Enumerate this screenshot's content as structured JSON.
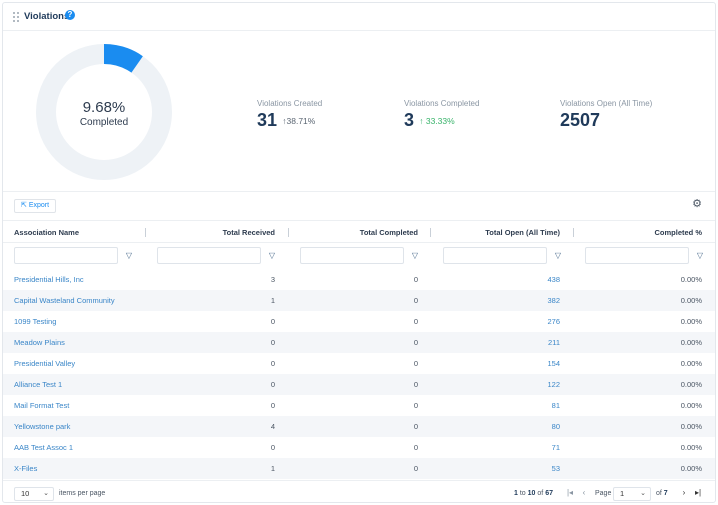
{
  "widget": {
    "title": "Violations",
    "help_icon": "question-circle-icon",
    "help_text": "?"
  },
  "donut": {
    "percent_label": "9.68%",
    "caption": "Completed",
    "value_fraction": 0.0968,
    "fill_color": "#1a8cf0",
    "track_color": "#eef2f6"
  },
  "stats": [
    {
      "label": "Violations Created",
      "value": "31",
      "change": "↑38.71%",
      "change_color": "#5b6673"
    },
    {
      "label": "Violations Completed",
      "value": "3",
      "change": "↑ 33.33%",
      "change_color": "#38b36a"
    },
    {
      "label": "Violations Open (All Time)",
      "value": "2507",
      "change": ""
    }
  ],
  "toolbar": {
    "export_label": "Export",
    "export_icon": "external-link-icon",
    "settings_icon": "gear-icon"
  },
  "table": {
    "columns": [
      "Association Name",
      "Total Received",
      "Total Completed",
      "Total Open (All Time)",
      "Completed %"
    ],
    "rows": [
      {
        "name": "Presidential Hills, Inc",
        "received": "3",
        "completed": "0",
        "open": "438",
        "pct": "0.00%"
      },
      {
        "name": "Capital Wasteland Community",
        "received": "1",
        "completed": "0",
        "open": "382",
        "pct": "0.00%"
      },
      {
        "name": "1099 Testing",
        "received": "0",
        "completed": "0",
        "open": "276",
        "pct": "0.00%"
      },
      {
        "name": "Meadow Plains",
        "received": "0",
        "completed": "0",
        "open": "211",
        "pct": "0.00%"
      },
      {
        "name": "Presidential Valley",
        "received": "0",
        "completed": "0",
        "open": "154",
        "pct": "0.00%"
      },
      {
        "name": "Alliance Test 1",
        "received": "0",
        "completed": "0",
        "open": "122",
        "pct": "0.00%"
      },
      {
        "name": "Mail Format Test",
        "received": "0",
        "completed": "0",
        "open": "81",
        "pct": "0.00%"
      },
      {
        "name": "Yellowstone park",
        "received": "4",
        "completed": "0",
        "open": "80",
        "pct": "0.00%"
      },
      {
        "name": "AAB Test Assoc 1",
        "received": "0",
        "completed": "0",
        "open": "71",
        "pct": "0.00%"
      },
      {
        "name": "X-Files",
        "received": "1",
        "completed": "0",
        "open": "53",
        "pct": "0.00%"
      }
    ]
  },
  "pager": {
    "page_size": "10",
    "items_per_page_label": "items per page",
    "range_from": "1",
    "range_to_word": "to",
    "range_to": "10",
    "of_word": "of",
    "total": "67",
    "page_label": "Page",
    "current_page": "1",
    "page_of_word": "of",
    "total_pages": "7"
  }
}
